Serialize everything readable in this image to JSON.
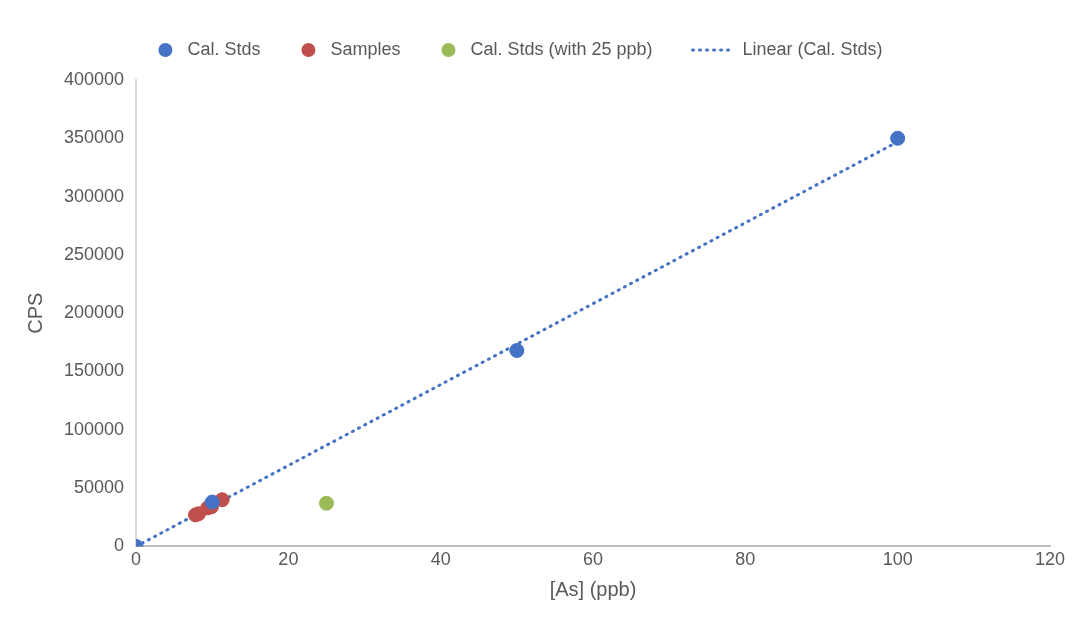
{
  "chart_data": {
    "type": "scatter",
    "xlabel": "[As] (ppb)",
    "ylabel": "CPS",
    "xlim": [
      0,
      120
    ],
    "xticks": [
      0,
      20,
      40,
      60,
      80,
      100,
      120
    ],
    "ylim": [
      0,
      400000
    ],
    "yticks": [
      0,
      50000,
      100000,
      150000,
      200000,
      250000,
      300000,
      350000,
      400000
    ],
    "grid": false,
    "legend": "top",
    "marker": "circle",
    "series": [
      {
        "name": "Cal. Stds",
        "color": "#4472c4",
        "x": [
          0,
          10,
          50,
          100
        ],
        "values": [
          0,
          38000,
          168000,
          350000
        ]
      },
      {
        "name": "Samples",
        "color": "#c0504d",
        "x": [
          7.8,
          8.2,
          9.4,
          9.9,
          11.3
        ],
        "values": [
          27000,
          28000,
          33000,
          34000,
          40000
        ]
      },
      {
        "name": "Cal. Stds (with 25 ppb)",
        "color": "#9bbb59",
        "x": [
          25
        ],
        "values": [
          37000
        ]
      },
      {
        "name": "Linear (Cal. Stds)",
        "type": "line",
        "color": "#4472c4",
        "line_style": "dotted",
        "marker": "none",
        "x": [
          0,
          100
        ],
        "values": [
          0,
          347000
        ]
      }
    ]
  }
}
